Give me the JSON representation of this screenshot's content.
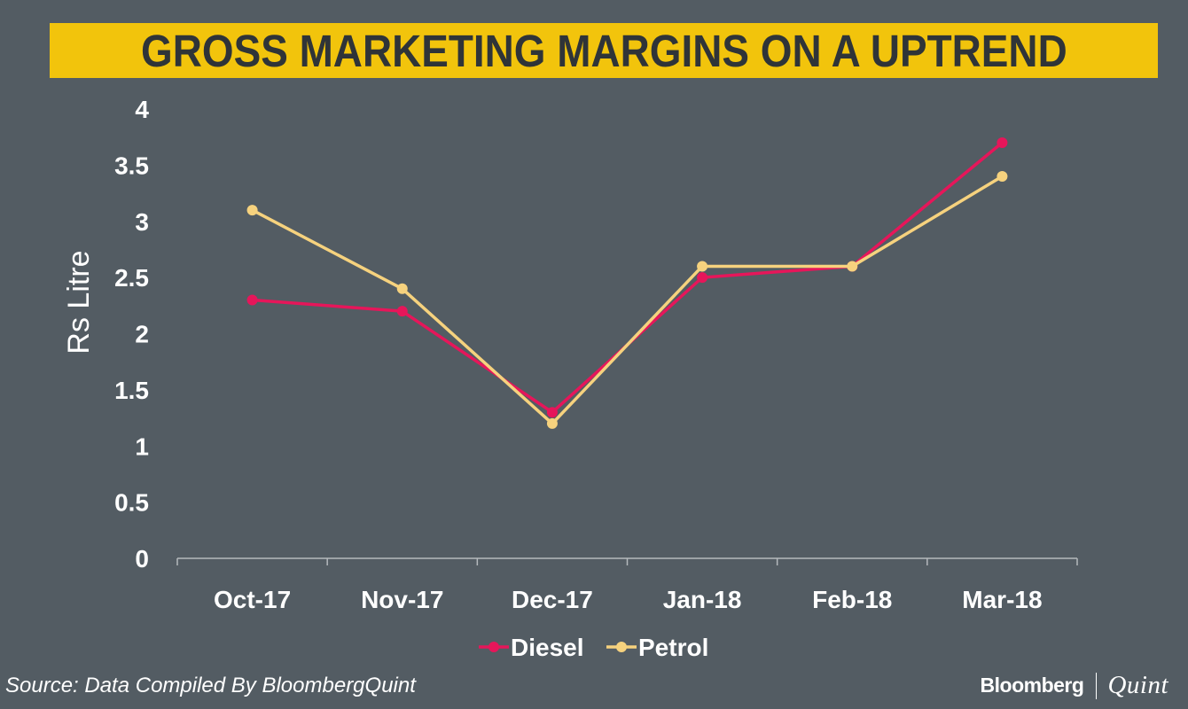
{
  "title": "GROSS MARKETING MARGINS ON A UPTREND",
  "source": "Source: Data Compiled By BloombergQuint",
  "logo": {
    "left": "Bloomberg",
    "right": "Quint"
  },
  "colors": {
    "background": "#535c63",
    "banner": "#f2c40c",
    "diesel": "#e6165a",
    "petrol": "#f6d27e",
    "text": "#ffffff",
    "axis": "#b4b9bd"
  },
  "chart_data": {
    "type": "line",
    "title": "GROSS MARKETING MARGINS ON A UPTREND",
    "xlabel": "",
    "ylabel": "Rs Litre",
    "categories": [
      "Oct-17",
      "Nov-17",
      "Dec-17",
      "Jan-18",
      "Feb-18",
      "Mar-18"
    ],
    "ylim": [
      0,
      4
    ],
    "yticks": [
      0,
      0.5,
      1,
      1.5,
      2,
      2.5,
      3,
      3.5,
      4
    ],
    "ytick_labels": [
      "0",
      "0.5",
      "1",
      "1.5",
      "2",
      "2.5",
      "3",
      "3.5",
      "4"
    ],
    "grid": false,
    "legend_position": "bottom-center",
    "series": [
      {
        "name": "Diesel",
        "color": "#e6165a",
        "values": [
          2.3,
          2.2,
          1.3,
          2.5,
          2.6,
          3.7
        ]
      },
      {
        "name": "Petrol",
        "color": "#f6d27e",
        "values": [
          3.1,
          2.4,
          1.2,
          2.6,
          2.6,
          3.4
        ]
      }
    ]
  }
}
